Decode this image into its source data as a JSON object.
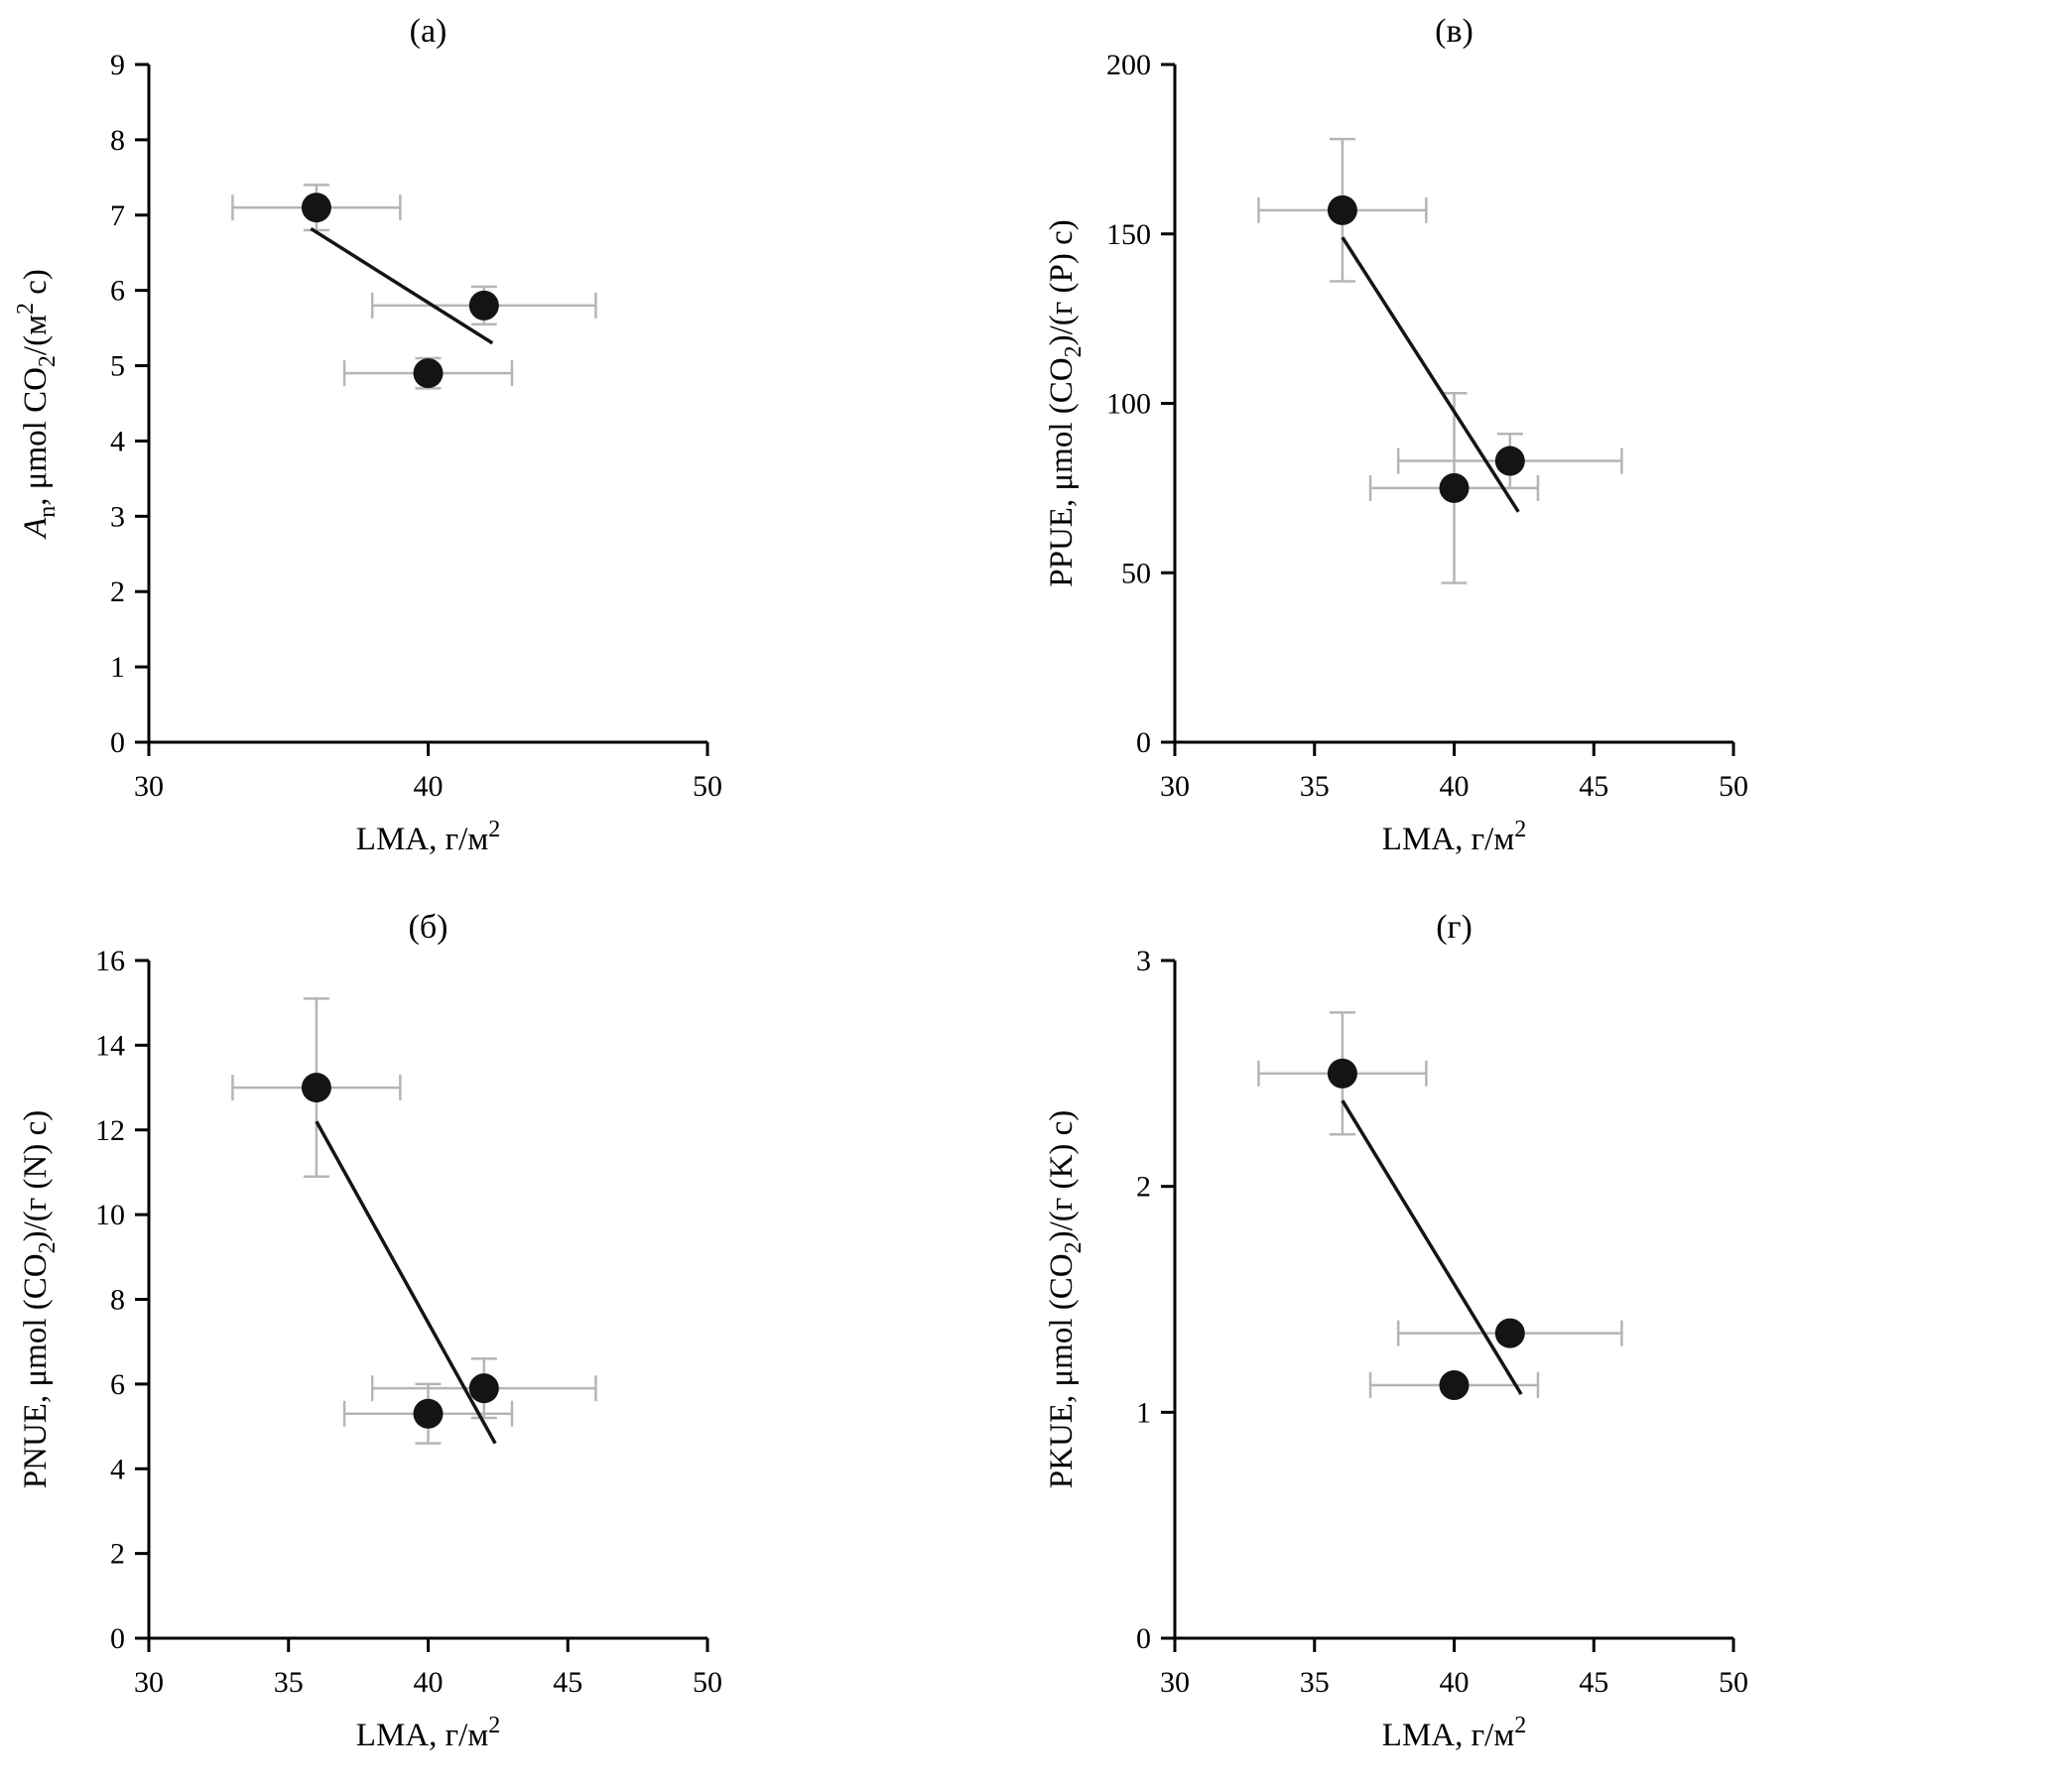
{
  "figure": {
    "background": "#ffffff",
    "point_color": "#141414",
    "error_bar_color": "#b5b5b5",
    "trend_line_color": "#141414",
    "axis_color": "#000000"
  },
  "chart_data": [
    {
      "id": "a",
      "type": "scatter",
      "position": "top-left",
      "panel_label": "(а)",
      "xlabel_parts": [
        {
          "text": "LMA, г/м",
          "style": "normal"
        },
        {
          "text": "2",
          "style": "sup"
        }
      ],
      "ylabel_parts": [
        {
          "text": "A",
          "style": "italic"
        },
        {
          "text": "n",
          "style": "sub"
        },
        {
          "text": ", μmol CO",
          "style": "normal"
        },
        {
          "text": "2",
          "style": "sub"
        },
        {
          "text": "/(м",
          "style": "normal"
        },
        {
          "text": "2",
          "style": "sup"
        },
        {
          "text": " с)",
          "style": "normal"
        }
      ],
      "xlim": [
        30,
        50
      ],
      "ylim": [
        0,
        9
      ],
      "xticks": [
        30,
        40,
        50
      ],
      "yticks": [
        0,
        1,
        2,
        3,
        4,
        5,
        6,
        7,
        8,
        9
      ],
      "grid": false,
      "legend": "none",
      "points": [
        {
          "x": 36,
          "y": 7.1,
          "xerr": 3,
          "yerr": 0.3
        },
        {
          "x": 42,
          "y": 5.8,
          "xerr": 4,
          "yerr": 0.25
        },
        {
          "x": 40,
          "y": 4.9,
          "xerr": 3,
          "yerr": 0.2
        }
      ],
      "trend_line": {
        "x1": 35.8,
        "y1": 6.82,
        "x2": 42.3,
        "y2": 5.3
      }
    },
    {
      "id": "v",
      "type": "scatter",
      "position": "top-right",
      "panel_label": "(в)",
      "xlabel_parts": [
        {
          "text": "LMA, г/м",
          "style": "normal"
        },
        {
          "text": "2",
          "style": "sup"
        }
      ],
      "ylabel_parts": [
        {
          "text": "PPUE, μmol (CO",
          "style": "normal"
        },
        {
          "text": "2",
          "style": "sub"
        },
        {
          "text": ")/(г (P) с)",
          "style": "normal"
        }
      ],
      "xlim": [
        30,
        50
      ],
      "ylim": [
        0,
        200
      ],
      "xticks": [
        30,
        35,
        40,
        45,
        50
      ],
      "yticks": [
        0,
        50,
        100,
        150,
        200
      ],
      "grid": false,
      "legend": "none",
      "points": [
        {
          "x": 36,
          "y": 157,
          "xerr": 3,
          "yerr": 21
        },
        {
          "x": 40,
          "y": 75,
          "xerr": 3,
          "yerr": 28
        },
        {
          "x": 42,
          "y": 83,
          "xerr": 4,
          "yerr": 8
        }
      ],
      "trend_line": {
        "x1": 36,
        "y1": 149,
        "x2": 42.3,
        "y2": 68
      }
    },
    {
      "id": "b",
      "type": "scatter",
      "position": "bottom-left",
      "panel_label": "(б)",
      "xlabel_parts": [
        {
          "text": "LMA, г/м",
          "style": "normal"
        },
        {
          "text": "2",
          "style": "sup"
        }
      ],
      "ylabel_parts": [
        {
          "text": "PNUE, μmol (CO",
          "style": "normal"
        },
        {
          "text": "2",
          "style": "sub"
        },
        {
          "text": ")/(г (N) с)",
          "style": "normal"
        }
      ],
      "xlim": [
        30,
        50
      ],
      "ylim": [
        0,
        16
      ],
      "xticks": [
        30,
        35,
        40,
        45,
        50
      ],
      "yticks": [
        0,
        2,
        4,
        6,
        8,
        10,
        12,
        14,
        16
      ],
      "grid": false,
      "legend": "none",
      "points": [
        {
          "x": 36,
          "y": 13.0,
          "xerr": 3,
          "yerr": 2.1
        },
        {
          "x": 40,
          "y": 5.3,
          "xerr": 3,
          "yerr": 0.7
        },
        {
          "x": 42,
          "y": 5.9,
          "xerr": 4,
          "yerr": 0.7
        }
      ],
      "trend_line": {
        "x1": 36,
        "y1": 12.2,
        "x2": 42.4,
        "y2": 4.6
      }
    },
    {
      "id": "g",
      "type": "scatter",
      "position": "bottom-right",
      "panel_label": "(г)",
      "xlabel_parts": [
        {
          "text": "LMA, г/м",
          "style": "normal"
        },
        {
          "text": "2",
          "style": "sup"
        }
      ],
      "ylabel_parts": [
        {
          "text": "PKUE, μmol (CO",
          "style": "normal"
        },
        {
          "text": "2",
          "style": "sub"
        },
        {
          "text": ")/(г (K) с)",
          "style": "normal"
        }
      ],
      "xlim": [
        30,
        50
      ],
      "ylim": [
        0,
        3
      ],
      "xticks": [
        30,
        35,
        40,
        45,
        50
      ],
      "yticks": [
        0,
        1,
        2,
        3
      ],
      "grid": false,
      "legend": "none",
      "points": [
        {
          "x": 36,
          "y": 2.5,
          "xerr": 3,
          "yerr": 0.27
        },
        {
          "x": 40,
          "y": 1.12,
          "xerr": 3,
          "yerr": 0
        },
        {
          "x": 42,
          "y": 1.35,
          "xerr": 4,
          "yerr": 0
        }
      ],
      "trend_line": {
        "x1": 36,
        "y1": 2.38,
        "x2": 42.4,
        "y2": 1.08
      }
    }
  ]
}
